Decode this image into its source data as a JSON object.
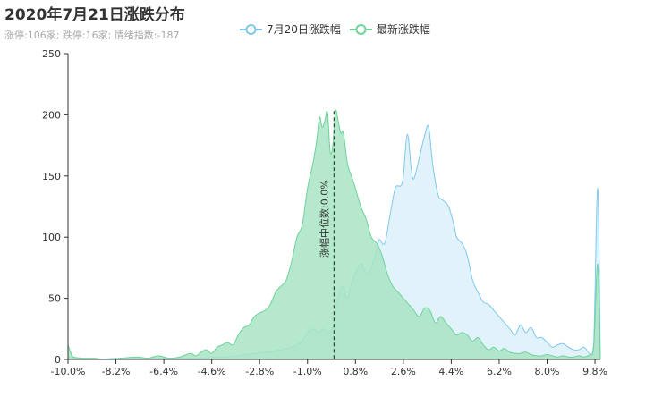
{
  "title": "2020年7月21日涨跌分布",
  "subtitle": "涨停:106家; 跌停:16家; 情绪指数:-187",
  "legend": [
    {
      "name": "7月20日涨跌幅",
      "color": "#7ec8ec"
    },
    {
      "name": "最新涨跌幅",
      "color": "#6fd39a"
    }
  ],
  "chart_data": {
    "type": "area",
    "ylim": [
      0,
      250
    ],
    "y_ticks": [
      0,
      50,
      100,
      150,
      200,
      250
    ],
    "xlim": [
      -10.0,
      10.0
    ],
    "x_tick_labels": [
      "-10.0%",
      "-8.2%",
      "-6.4%",
      "-4.6%",
      "-2.8%",
      "-1.0%",
      "0.8%",
      "2.6%",
      "4.4%",
      "6.2%",
      "8.0%",
      "9.8%"
    ],
    "x_tick_values": [
      -10.0,
      -8.2,
      -6.4,
      -4.6,
      -2.8,
      -1.0,
      0.8,
      2.6,
      4.4,
      6.2,
      8.0,
      9.8
    ],
    "markline": {
      "label": "涨幅中位数:0.0%",
      "x": 0.0
    },
    "series": [
      {
        "name": "7月20日涨跌幅",
        "color": "#7ec8ec",
        "fill": "#dff1fb",
        "points": [
          [
            -10.0,
            2
          ],
          [
            -9.6,
            1
          ],
          [
            -9.0,
            0
          ],
          [
            -8.0,
            1
          ],
          [
            -7.0,
            1
          ],
          [
            -6.0,
            1
          ],
          [
            -5.0,
            1
          ],
          [
            -4.5,
            2
          ],
          [
            -4.0,
            2
          ],
          [
            -3.6,
            3
          ],
          [
            -3.0,
            5
          ],
          [
            -2.5,
            6
          ],
          [
            -2.0,
            8
          ],
          [
            -1.6,
            10
          ],
          [
            -1.2,
            15
          ],
          [
            -1.0,
            22
          ],
          [
            -0.8,
            25
          ],
          [
            -0.6,
            22
          ],
          [
            -0.4,
            25
          ],
          [
            -0.2,
            22
          ],
          [
            0.0,
            30
          ],
          [
            0.1,
            45
          ],
          [
            0.3,
            60
          ],
          [
            0.5,
            50
          ],
          [
            0.7,
            65
          ],
          [
            1.0,
            78
          ],
          [
            1.2,
            70
          ],
          [
            1.4,
            75
          ],
          [
            1.6,
            90
          ],
          [
            1.7,
            98
          ],
          [
            1.9,
            95
          ],
          [
            2.1,
            118
          ],
          [
            2.3,
            140
          ],
          [
            2.5,
            142
          ],
          [
            2.6,
            150
          ],
          [
            2.75,
            184
          ],
          [
            2.9,
            155
          ],
          [
            3.0,
            148
          ],
          [
            3.2,
            165
          ],
          [
            3.4,
            183
          ],
          [
            3.55,
            190
          ],
          [
            3.7,
            160
          ],
          [
            3.9,
            135
          ],
          [
            4.1,
            130
          ],
          [
            4.3,
            125
          ],
          [
            4.5,
            110
          ],
          [
            4.6,
            100
          ],
          [
            4.8,
            95
          ],
          [
            5.0,
            85
          ],
          [
            5.2,
            65
          ],
          [
            5.4,
            55
          ],
          [
            5.6,
            47
          ],
          [
            5.8,
            45
          ],
          [
            6.0,
            40
          ],
          [
            6.2,
            35
          ],
          [
            6.4,
            30
          ],
          [
            6.6,
            25
          ],
          [
            6.8,
            20
          ],
          [
            7.0,
            28
          ],
          [
            7.2,
            22
          ],
          [
            7.4,
            26
          ],
          [
            7.6,
            18
          ],
          [
            7.8,
            18
          ],
          [
            8.0,
            14
          ],
          [
            8.2,
            10
          ],
          [
            8.4,
            12
          ],
          [
            8.6,
            13
          ],
          [
            8.8,
            10
          ],
          [
            9.0,
            8
          ],
          [
            9.2,
            8
          ],
          [
            9.4,
            10
          ],
          [
            9.6,
            5
          ],
          [
            9.75,
            12
          ],
          [
            9.9,
            140
          ],
          [
            10.0,
            0
          ]
        ]
      },
      {
        "name": "最新涨跌幅",
        "color": "#6fd39a",
        "fill": "#a8e4c4",
        "points": [
          [
            -10.0,
            12
          ],
          [
            -9.9,
            6
          ],
          [
            -9.8,
            2
          ],
          [
            -9.4,
            1
          ],
          [
            -9.0,
            1
          ],
          [
            -8.6,
            0
          ],
          [
            -8.0,
            1
          ],
          [
            -7.4,
            2
          ],
          [
            -7.0,
            1
          ],
          [
            -6.6,
            3
          ],
          [
            -6.2,
            1
          ],
          [
            -5.8,
            2
          ],
          [
            -5.4,
            5
          ],
          [
            -5.2,
            3
          ],
          [
            -5.0,
            6
          ],
          [
            -4.8,
            8
          ],
          [
            -4.6,
            5
          ],
          [
            -4.4,
            10
          ],
          [
            -4.2,
            12
          ],
          [
            -4.0,
            14
          ],
          [
            -3.8,
            12
          ],
          [
            -3.6,
            20
          ],
          [
            -3.4,
            26
          ],
          [
            -3.2,
            28
          ],
          [
            -3.0,
            35
          ],
          [
            -2.8,
            38
          ],
          [
            -2.6,
            40
          ],
          [
            -2.4,
            45
          ],
          [
            -2.2,
            55
          ],
          [
            -2.0,
            60
          ],
          [
            -1.8,
            65
          ],
          [
            -1.6,
            80
          ],
          [
            -1.4,
            100
          ],
          [
            -1.2,
            110
          ],
          [
            -1.0,
            140
          ],
          [
            -0.8,
            160
          ],
          [
            -0.65,
            180
          ],
          [
            -0.55,
            198
          ],
          [
            -0.45,
            190
          ],
          [
            -0.35,
            195
          ],
          [
            -0.25,
            202
          ],
          [
            -0.15,
            170
          ],
          [
            -0.05,
            175
          ],
          [
            0.05,
            203
          ],
          [
            0.15,
            195
          ],
          [
            0.25,
            185
          ],
          [
            0.35,
            185
          ],
          [
            0.5,
            160
          ],
          [
            0.65,
            150
          ],
          [
            0.8,
            140
          ],
          [
            1.0,
            125
          ],
          [
            1.2,
            115
          ],
          [
            1.4,
            100
          ],
          [
            1.6,
            95
          ],
          [
            1.8,
            85
          ],
          [
            2.0,
            70
          ],
          [
            2.2,
            60
          ],
          [
            2.4,
            55
          ],
          [
            2.6,
            50
          ],
          [
            2.8,
            45
          ],
          [
            3.0,
            40
          ],
          [
            3.2,
            35
          ],
          [
            3.4,
            42
          ],
          [
            3.6,
            40
          ],
          [
            3.8,
            30
          ],
          [
            4.0,
            35
          ],
          [
            4.2,
            30
          ],
          [
            4.4,
            25
          ],
          [
            4.6,
            20
          ],
          [
            4.8,
            22
          ],
          [
            5.0,
            20
          ],
          [
            5.2,
            15
          ],
          [
            5.4,
            18
          ],
          [
            5.6,
            12
          ],
          [
            5.8,
            8
          ],
          [
            6.0,
            10
          ],
          [
            6.2,
            7
          ],
          [
            6.4,
            9
          ],
          [
            6.6,
            6
          ],
          [
            6.8,
            5
          ],
          [
            7.0,
            5
          ],
          [
            7.2,
            6
          ],
          [
            7.4,
            4
          ],
          [
            7.6,
            3
          ],
          [
            7.8,
            3
          ],
          [
            8.0,
            4
          ],
          [
            8.2,
            3
          ],
          [
            8.4,
            2
          ],
          [
            8.6,
            3
          ],
          [
            8.8,
            2
          ],
          [
            9.0,
            2
          ],
          [
            9.2,
            3
          ],
          [
            9.4,
            2
          ],
          [
            9.6,
            4
          ],
          [
            9.75,
            10
          ],
          [
            9.9,
            78
          ],
          [
            10.0,
            0
          ]
        ]
      }
    ]
  }
}
